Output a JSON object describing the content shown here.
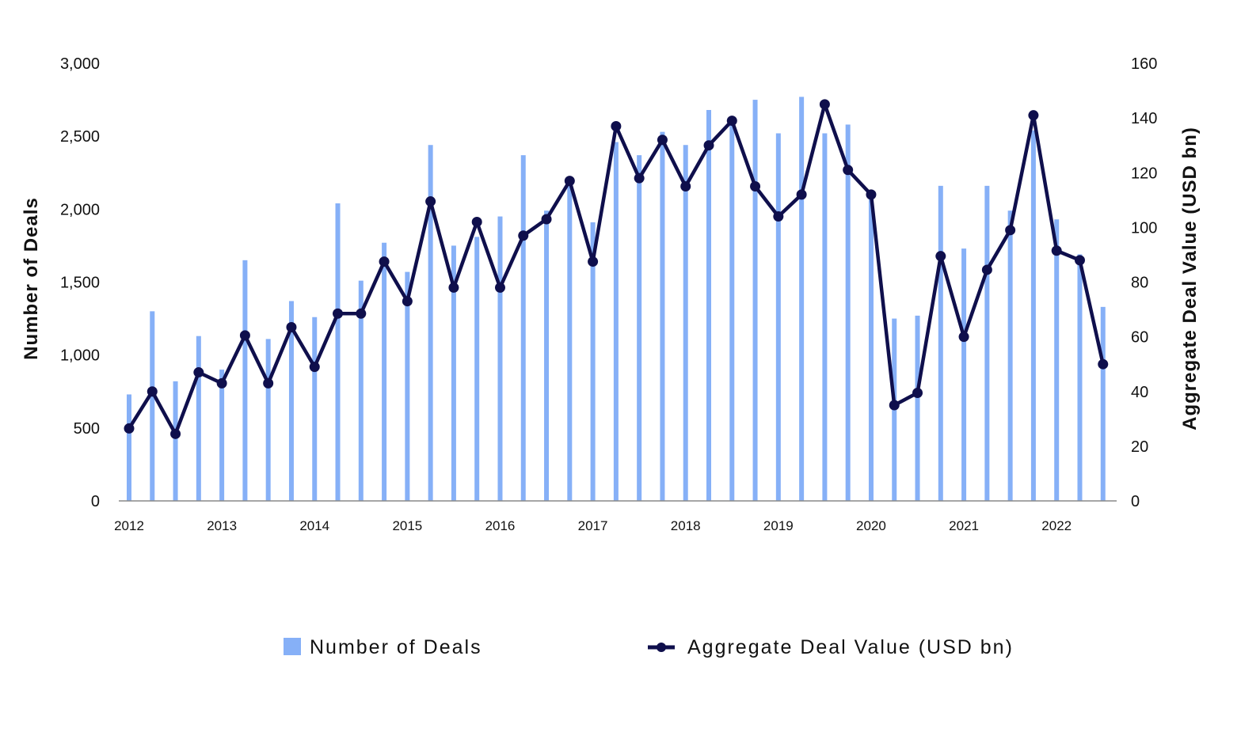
{
  "chart_data": {
    "type": "bar+line",
    "title": "",
    "x": [
      "2012 Q1",
      "2012 Q2",
      "2012 Q3",
      "2012 Q4",
      "2013 Q1",
      "2013 Q2",
      "2013 Q3",
      "2013 Q4",
      "2014 Q1",
      "2014 Q2",
      "2014 Q3",
      "2014 Q4",
      "2015 Q1",
      "2015 Q2",
      "2015 Q3",
      "2015 Q4",
      "2016 Q1",
      "2016 Q2",
      "2016 Q3",
      "2016 Q4",
      "2017 Q1",
      "2017 Q2",
      "2017 Q3",
      "2017 Q4",
      "2018 Q1",
      "2018 Q2",
      "2018 Q3",
      "2018 Q4",
      "2019 Q1",
      "2019 Q2",
      "2019 Q3",
      "2019 Q4",
      "2020 Q1",
      "2020 Q2",
      "2020 Q3",
      "2020 Q4",
      "2021 Q1",
      "2021 Q2",
      "2021 Q3",
      "2021 Q4",
      "2022 Q1",
      "2022 Q2",
      "2022 Q3"
    ],
    "xticks": [
      "2012",
      "2013",
      "2014",
      "2015",
      "2016",
      "2017",
      "2018",
      "2019",
      "2020",
      "2021",
      "2022"
    ],
    "y_left_ticks": [
      "0",
      "500",
      "1,000",
      "1,500",
      "2,000",
      "2,500",
      "3,000"
    ],
    "y_right_ticks": [
      "0",
      "20",
      "40",
      "60",
      "80",
      "100",
      "120",
      "140",
      "160"
    ],
    "ylabel_left": "Number of Deals",
    "ylabel_right": "Aggregate Deal Value (USD bn)",
    "ylim_left": [
      0,
      3000
    ],
    "ylim_right": [
      0,
      160
    ],
    "grid": false,
    "legend_position": "bottom",
    "series": [
      {
        "name": "Number of Deals",
        "kind": "bar",
        "axis": "left",
        "color": "#86b0f7",
        "values": [
          730,
          1300,
          820,
          1130,
          900,
          1650,
          1110,
          1370,
          1260,
          2040,
          1510,
          1770,
          1570,
          2440,
          1750,
          1810,
          1950,
          2370,
          1990,
          2190,
          1910,
          2460,
          2370,
          2530,
          2440,
          2680,
          2590,
          2750,
          2520,
          2770,
          2520,
          2580,
          2100,
          1250,
          1270,
          2160,
          1730,
          2160,
          1990,
          2540,
          1930,
          1690,
          1330
        ]
      },
      {
        "name": "Aggregate Deal Value (USD bn)",
        "kind": "line",
        "axis": "right",
        "color": "#0f0f4c",
        "values": [
          26.5,
          40,
          24.5,
          47,
          43,
          60.5,
          43,
          63.5,
          49,
          68.5,
          68.5,
          87.5,
          73,
          109.5,
          78,
          102,
          78,
          97,
          103,
          117,
          87.5,
          137,
          118,
          132,
          115,
          130,
          139,
          115,
          104,
          112,
          145,
          121,
          112,
          35,
          39.5,
          89.5,
          60,
          84.5,
          99,
          141,
          91.5,
          88,
          50
        ]
      }
    ]
  }
}
